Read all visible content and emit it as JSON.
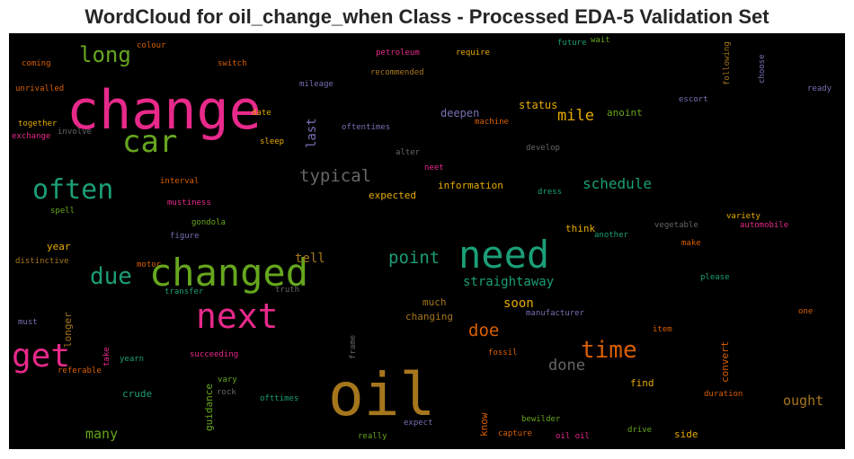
{
  "title": "WordCloud for oil_change_when Class - Processed EDA-5 Validation Set",
  "words": [
    {
      "text": "change",
      "color": "#e7298a"
    },
    {
      "text": "oil",
      "color": "#a6761d"
    },
    {
      "text": "changed",
      "color": "#66a61e"
    },
    {
      "text": "need",
      "color": "#1b9e77"
    },
    {
      "text": "next",
      "color": "#e7298a"
    },
    {
      "text": "car",
      "color": "#66a61e"
    },
    {
      "text": "often",
      "color": "#1b9e77"
    },
    {
      "text": "get",
      "color": "#e7298a"
    },
    {
      "text": "time",
      "color": "#d95f02"
    },
    {
      "text": "long",
      "color": "#66a61e"
    },
    {
      "text": "due",
      "color": "#1b9e77"
    },
    {
      "text": "typical",
      "color": "#666666"
    },
    {
      "text": "point",
      "color": "#1b9e77"
    },
    {
      "text": "doe",
      "color": "#d95f02"
    },
    {
      "text": "mile",
      "color": "#e6ab02"
    },
    {
      "text": "schedule",
      "color": "#1b9e77"
    },
    {
      "text": "done",
      "color": "#666666"
    },
    {
      "text": "straightaway",
      "color": "#1b9e77"
    },
    {
      "text": "many",
      "color": "#66a61e"
    },
    {
      "text": "ought",
      "color": "#a6761d"
    },
    {
      "text": "tell",
      "color": "#a6761d"
    },
    {
      "text": "soon",
      "color": "#e6ab02"
    },
    {
      "text": "status",
      "color": "#e6ab02"
    },
    {
      "text": "deepen",
      "color": "#7570b3"
    },
    {
      "text": "anoint",
      "color": "#66a61e"
    },
    {
      "text": "expected",
      "color": "#e6ab02"
    },
    {
      "text": "information",
      "color": "#e6ab02"
    },
    {
      "text": "much",
      "color": "#a6761d"
    },
    {
      "text": "changing",
      "color": "#a6761d"
    },
    {
      "text": "think",
      "color": "#e6ab02"
    },
    {
      "text": "year",
      "color": "#e6ab02"
    },
    {
      "text": "crude",
      "color": "#1b9e77"
    },
    {
      "text": "find",
      "color": "#e6ab02"
    },
    {
      "text": "side",
      "color": "#e6ab02"
    },
    {
      "text": "dress",
      "color": "#1b9e77"
    },
    {
      "text": "colour",
      "color": "#d95f02"
    },
    {
      "text": "petroleum",
      "color": "#e7298a"
    },
    {
      "text": "require",
      "color": "#e6ab02"
    },
    {
      "text": "future",
      "color": "#1b9e77"
    },
    {
      "text": "wait",
      "color": "#66a61e"
    },
    {
      "text": "switch",
      "color": "#d95f02"
    },
    {
      "text": "coming",
      "color": "#d95f02"
    },
    {
      "text": "recommended",
      "color": "#a6761d"
    },
    {
      "text": "unrivalled",
      "color": "#d95f02"
    },
    {
      "text": "mileage",
      "color": "#7570b3"
    },
    {
      "text": "escort",
      "color": "#7570b3"
    },
    {
      "text": "ready",
      "color": "#7570b3"
    },
    {
      "text": "machine",
      "color": "#d95f02"
    },
    {
      "text": "together",
      "color": "#e6ab02"
    },
    {
      "text": "involve",
      "color": "#666666"
    },
    {
      "text": "exchange",
      "color": "#e7298a"
    },
    {
      "text": "date",
      "color": "#e6ab02"
    },
    {
      "text": "oftentimes",
      "color": "#7570b3"
    },
    {
      "text": "sleep",
      "color": "#e6ab02"
    },
    {
      "text": "alter",
      "color": "#666666"
    },
    {
      "text": "develop",
      "color": "#666666"
    },
    {
      "text": "neet",
      "color": "#e7298a"
    },
    {
      "text": "interval",
      "color": "#d95f02"
    },
    {
      "text": "mustiness",
      "color": "#e7298a"
    },
    {
      "text": "spell",
      "color": "#66a61e"
    },
    {
      "text": "gondola",
      "color": "#66a61e"
    },
    {
      "text": "figure",
      "color": "#7570b3"
    },
    {
      "text": "vegetable",
      "color": "#666666"
    },
    {
      "text": "variety",
      "color": "#e6ab02"
    },
    {
      "text": "automobile",
      "color": "#e7298a"
    },
    {
      "text": "another",
      "color": "#1b9e77"
    },
    {
      "text": "make",
      "color": "#d95f02"
    },
    {
      "text": "distinctive",
      "color": "#a6761d"
    },
    {
      "text": "motor",
      "color": "#d95f02"
    },
    {
      "text": "transfer",
      "color": "#1b9e77"
    },
    {
      "text": "truth",
      "color": "#666666"
    },
    {
      "text": "please",
      "color": "#1b9e77"
    },
    {
      "text": "must",
      "color": "#7570b3"
    },
    {
      "text": "manufacturer",
      "color": "#7570b3"
    },
    {
      "text": "one",
      "color": "#d95f02"
    },
    {
      "text": "item",
      "color": "#d95f02"
    },
    {
      "text": "fossil",
      "color": "#d95f02"
    },
    {
      "text": "succeeding",
      "color": "#e7298a"
    },
    {
      "text": "yearn",
      "color": "#1b9e77"
    },
    {
      "text": "referable",
      "color": "#d95f02"
    },
    {
      "text": "vary",
      "color": "#66a61e"
    },
    {
      "text": "rock",
      "color": "#666666"
    },
    {
      "text": "ofttimes",
      "color": "#1b9e77"
    },
    {
      "text": "expect",
      "color": "#7570b3"
    },
    {
      "text": "bewilder",
      "color": "#66a61e"
    },
    {
      "text": "capture",
      "color": "#d95f02"
    },
    {
      "text": "oil oil",
      "color": "#e7298a"
    },
    {
      "text": "drive",
      "color": "#66a61e"
    },
    {
      "text": "duration",
      "color": "#d95f02"
    },
    {
      "text": "really",
      "color": "#66a61e"
    },
    {
      "text": "last",
      "color": "#7570b3"
    },
    {
      "text": "longer",
      "color": "#a6761d"
    },
    {
      "text": "take",
      "color": "#e7298a"
    },
    {
      "text": "guidance",
      "color": "#66a61e"
    },
    {
      "text": "frame",
      "color": "#666666"
    },
    {
      "text": "know",
      "color": "#d95f02"
    },
    {
      "text": "convert",
      "color": "#d95f02"
    },
    {
      "text": "following",
      "color": "#a6761d"
    },
    {
      "text": "choose",
      "color": "#7570b3"
    }
  ]
}
